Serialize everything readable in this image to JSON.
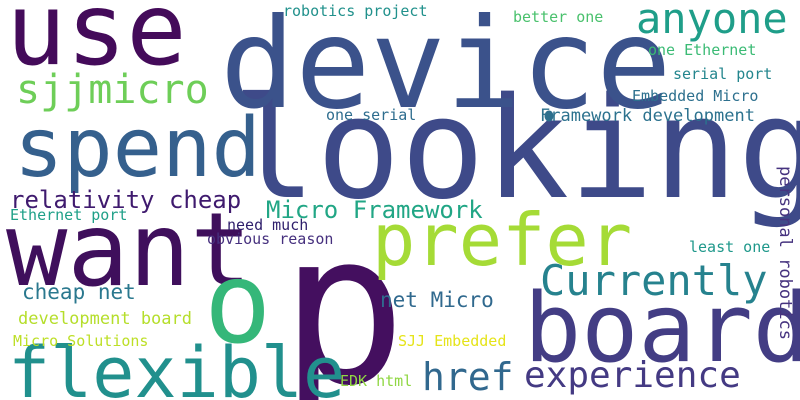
{
  "words": [
    {
      "text": "p",
      "color": "#440f5f"
    },
    {
      "text": "looking",
      "color": "#3e4a89"
    },
    {
      "text": "device",
      "color": "#3b528b"
    },
    {
      "text": "use",
      "color": "#440b5a"
    },
    {
      "text": "want",
      "color": "#3f0f5c"
    },
    {
      "text": "board",
      "color": "#433d84"
    },
    {
      "text": "spend",
      "color": "#35608d"
    },
    {
      "text": "flexible",
      "color": "#21908d"
    },
    {
      "text": "prefer",
      "color": "#a5db36"
    },
    {
      "text": "o",
      "color": "#35b779"
    },
    {
      "text": "anyone",
      "color": "#1f9e89"
    },
    {
      "text": "Currently",
      "color": "#26828e"
    },
    {
      "text": "experience",
      "color": "#443a83"
    },
    {
      "text": "href",
      "color": "#31688e"
    },
    {
      "text": "sjjmicro",
      "color": "#6ece58"
    },
    {
      "text": "relativity cheap",
      "color": "#3f1a6e"
    },
    {
      "text": "Micro Framework",
      "color": "#21a685"
    },
    {
      "text": "cheap net",
      "color": "#2a788e"
    },
    {
      "text": "net Micro",
      "color": "#30698e"
    },
    {
      "text": "development board",
      "color": "#b5de2b"
    },
    {
      "text": "Framework development",
      "color": "#2c728e"
    },
    {
      "text": "Embedded Micro",
      "color": "#2d708e"
    },
    {
      "text": "personal robotics",
      "color": "#46337f"
    },
    {
      "text": "robotics project",
      "color": "#21918c"
    },
    {
      "text": "better one",
      "color": "#4ac16d"
    },
    {
      "text": "one Ethernet",
      "color": "#3bbb75"
    },
    {
      "text": "serial port",
      "color": "#24868e"
    },
    {
      "text": "one serial",
      "color": "#2e6d8e"
    },
    {
      "text": "Ethernet port",
      "color": "#1fa088"
    },
    {
      "text": "need much",
      "color": "#2e1e6b"
    },
    {
      "text": "obvious reason",
      "color": "#46307e"
    },
    {
      "text": "least one",
      "color": "#1f988b"
    },
    {
      "text": "Micro Solutions",
      "color": "#bddf26"
    },
    {
      "text": "SJJ Embedded",
      "color": "#e5e419"
    },
    {
      "text": "EDK html",
      "color": "#90d743"
    }
  ]
}
